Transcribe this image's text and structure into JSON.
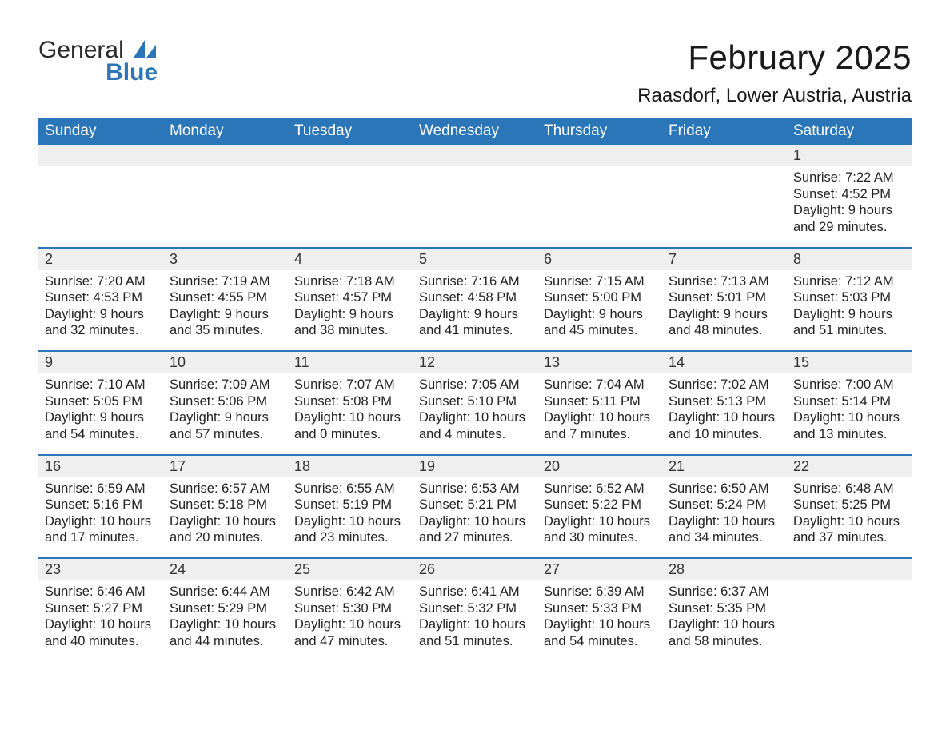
{
  "logo": {
    "word1": "General",
    "word2": "Blue",
    "icon_color": "#2a76b9"
  },
  "title": "February 2025",
  "location": "Raasdorf, Lower Austria, Austria",
  "colors": {
    "header_bg": "#2a76b9",
    "header_text": "#ffffff",
    "daynum_bg": "#efefef",
    "row_sep": "#2a76b9",
    "body_text": "#222222",
    "page_bg": "#ffffff"
  },
  "typography": {
    "title_fontsize": 42,
    "location_fontsize": 24,
    "header_fontsize": 19,
    "daynum_fontsize": 18,
    "body_fontsize": 16.5,
    "font_family": "Arial"
  },
  "layout": {
    "columns": 7,
    "rows": 5,
    "first_day_column_index": 6
  },
  "weekday_headers": [
    "Sunday",
    "Monday",
    "Tuesday",
    "Wednesday",
    "Thursday",
    "Friday",
    "Saturday"
  ],
  "days": [
    {
      "n": 1,
      "sunrise": "7:22 AM",
      "sunset": "4:52 PM",
      "daylight": "9 hours and 29 minutes."
    },
    {
      "n": 2,
      "sunrise": "7:20 AM",
      "sunset": "4:53 PM",
      "daylight": "9 hours and 32 minutes."
    },
    {
      "n": 3,
      "sunrise": "7:19 AM",
      "sunset": "4:55 PM",
      "daylight": "9 hours and 35 minutes."
    },
    {
      "n": 4,
      "sunrise": "7:18 AM",
      "sunset": "4:57 PM",
      "daylight": "9 hours and 38 minutes."
    },
    {
      "n": 5,
      "sunrise": "7:16 AM",
      "sunset": "4:58 PM",
      "daylight": "9 hours and 41 minutes."
    },
    {
      "n": 6,
      "sunrise": "7:15 AM",
      "sunset": "5:00 PM",
      "daylight": "9 hours and 45 minutes."
    },
    {
      "n": 7,
      "sunrise": "7:13 AM",
      "sunset": "5:01 PM",
      "daylight": "9 hours and 48 minutes."
    },
    {
      "n": 8,
      "sunrise": "7:12 AM",
      "sunset": "5:03 PM",
      "daylight": "9 hours and 51 minutes."
    },
    {
      "n": 9,
      "sunrise": "7:10 AM",
      "sunset": "5:05 PM",
      "daylight": "9 hours and 54 minutes."
    },
    {
      "n": 10,
      "sunrise": "7:09 AM",
      "sunset": "5:06 PM",
      "daylight": "9 hours and 57 minutes."
    },
    {
      "n": 11,
      "sunrise": "7:07 AM",
      "sunset": "5:08 PM",
      "daylight": "10 hours and 0 minutes."
    },
    {
      "n": 12,
      "sunrise": "7:05 AM",
      "sunset": "5:10 PM",
      "daylight": "10 hours and 4 minutes."
    },
    {
      "n": 13,
      "sunrise": "7:04 AM",
      "sunset": "5:11 PM",
      "daylight": "10 hours and 7 minutes."
    },
    {
      "n": 14,
      "sunrise": "7:02 AM",
      "sunset": "5:13 PM",
      "daylight": "10 hours and 10 minutes."
    },
    {
      "n": 15,
      "sunrise": "7:00 AM",
      "sunset": "5:14 PM",
      "daylight": "10 hours and 13 minutes."
    },
    {
      "n": 16,
      "sunrise": "6:59 AM",
      "sunset": "5:16 PM",
      "daylight": "10 hours and 17 minutes."
    },
    {
      "n": 17,
      "sunrise": "6:57 AM",
      "sunset": "5:18 PM",
      "daylight": "10 hours and 20 minutes."
    },
    {
      "n": 18,
      "sunrise": "6:55 AM",
      "sunset": "5:19 PM",
      "daylight": "10 hours and 23 minutes."
    },
    {
      "n": 19,
      "sunrise": "6:53 AM",
      "sunset": "5:21 PM",
      "daylight": "10 hours and 27 minutes."
    },
    {
      "n": 20,
      "sunrise": "6:52 AM",
      "sunset": "5:22 PM",
      "daylight": "10 hours and 30 minutes."
    },
    {
      "n": 21,
      "sunrise": "6:50 AM",
      "sunset": "5:24 PM",
      "daylight": "10 hours and 34 minutes."
    },
    {
      "n": 22,
      "sunrise": "6:48 AM",
      "sunset": "5:25 PM",
      "daylight": "10 hours and 37 minutes."
    },
    {
      "n": 23,
      "sunrise": "6:46 AM",
      "sunset": "5:27 PM",
      "daylight": "10 hours and 40 minutes."
    },
    {
      "n": 24,
      "sunrise": "6:44 AM",
      "sunset": "5:29 PM",
      "daylight": "10 hours and 44 minutes."
    },
    {
      "n": 25,
      "sunrise": "6:42 AM",
      "sunset": "5:30 PM",
      "daylight": "10 hours and 47 minutes."
    },
    {
      "n": 26,
      "sunrise": "6:41 AM",
      "sunset": "5:32 PM",
      "daylight": "10 hours and 51 minutes."
    },
    {
      "n": 27,
      "sunrise": "6:39 AM",
      "sunset": "5:33 PM",
      "daylight": "10 hours and 54 minutes."
    },
    {
      "n": 28,
      "sunrise": "6:37 AM",
      "sunset": "5:35 PM",
      "daylight": "10 hours and 58 minutes."
    }
  ],
  "labels": {
    "sunrise": "Sunrise:",
    "sunset": "Sunset:",
    "daylight": "Daylight:"
  }
}
